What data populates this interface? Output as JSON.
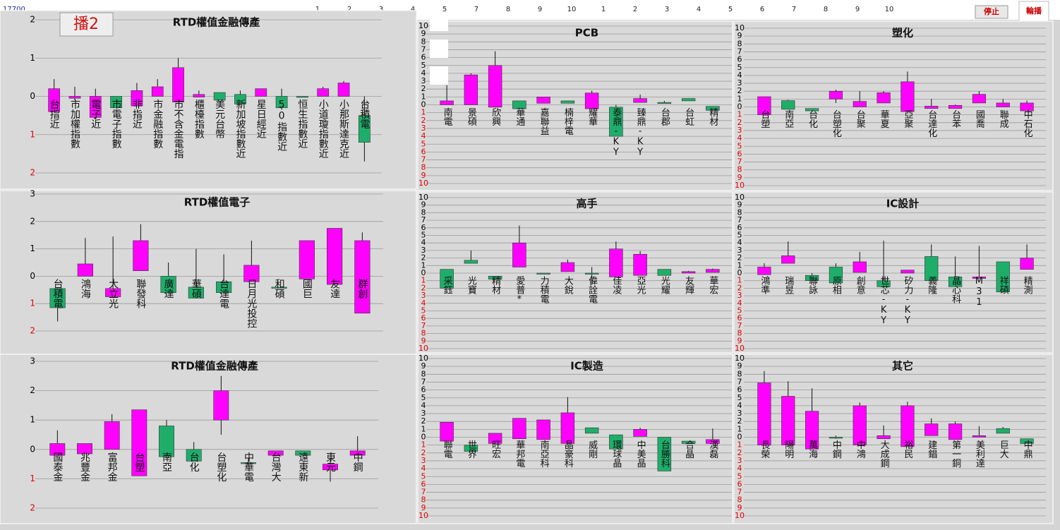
{
  "header": {
    "code": "17700",
    "numbers": [
      1,
      2,
      3,
      4,
      5,
      7,
      8,
      9,
      10,
      1,
      2,
      3,
      4,
      5,
      6,
      7,
      8,
      9,
      10
    ],
    "buttons": [
      "停止",
      "輪播"
    ],
    "panel_button": "播2"
  },
  "style": {
    "up": "#ff00ff",
    "down": "#1fae6a",
    "tick_positive": "#000000",
    "tick_negative": "#e00000",
    "grid": true
  },
  "chart_data": [
    {
      "type": "candlestick",
      "title": "RTD權值金融傳產",
      "ylim": [
        -2,
        2
      ],
      "yticks": [
        2,
        1,
        0,
        {
          "value": -1,
          "label": "1"
        },
        {
          "value": -2,
          "label": "2"
        }
      ],
      "categories": [
        "台指近",
        "市加權指數",
        "電子近",
        "市電子指數",
        "非指近",
        "市金融指數",
        "市不含金電指",
        "櫃檯指數",
        "美元台幣",
        "新加坡指數近",
        "星日經近",
        "50指數近",
        "恒生指數近",
        "小道瓊指數近",
        "小那斯達克近",
        "台積電"
      ],
      "open": [
        -0.4,
        -0.05,
        -0.55,
        0,
        -0.25,
        0,
        -0.15,
        -0.02,
        0.1,
        0.05,
        0,
        0,
        0,
        0,
        0,
        -0.5
      ],
      "close": [
        0.2,
        0,
        0,
        -0.3,
        0.15,
        0.25,
        0.75,
        0.05,
        -0.1,
        -0.2,
        0.2,
        -0.3,
        -0.01,
        0.2,
        0.35,
        -1.2
      ],
      "high": [
        0.45,
        0.25,
        0.2,
        0,
        0.35,
        0.45,
        1.0,
        0.15,
        0.1,
        0.15,
        0.2,
        0.2,
        0,
        0.25,
        0.4,
        0
      ],
      "low": [
        -0.4,
        -0.1,
        -0.6,
        -0.3,
        -0.25,
        0,
        -0.15,
        -0.02,
        -0.1,
        -0.2,
        0,
        -0.35,
        -0.01,
        0,
        0,
        -1.7
      ]
    },
    {
      "type": "candlestick",
      "title": "RTD權值電子",
      "ylim": [
        -2,
        3
      ],
      "yticks": [
        3,
        2,
        1,
        0,
        {
          "value": -1,
          "label": "1"
        },
        {
          "value": -2,
          "label": "2"
        }
      ],
      "categories": [
        "台積電",
        "鴻海",
        "大立光",
        "聯發科",
        "廣達",
        "華碩",
        "台達電",
        "日月光投控",
        "和碩",
        "國巨",
        "友達",
        "群創"
      ],
      "open": [
        -0.45,
        0,
        -0.75,
        0.2,
        0,
        -0.4,
        -0.2,
        -0.2,
        -0.4,
        -0.1,
        -0.3,
        -1.35
      ],
      "close": [
        -1.15,
        0.45,
        -0.45,
        1.3,
        -0.6,
        -0.8,
        -0.6,
        0.4,
        -0.42,
        1.3,
        1.75,
        1.3
      ],
      "high": [
        -0.4,
        1.4,
        1.45,
        1.9,
        0.5,
        1.0,
        0.8,
        1.3,
        -0.4,
        1.3,
        1.75,
        1.6
      ],
      "low": [
        -1.65,
        0,
        -0.75,
        0.2,
        -0.6,
        -0.8,
        -0.6,
        -0.2,
        -0.42,
        -0.1,
        -0.3,
        -1.35
      ]
    },
    {
      "type": "candlestick",
      "title": "RTD權值金融傳產",
      "ylim": [
        -2,
        3
      ],
      "yticks": [
        3,
        2,
        1,
        0,
        {
          "value": -1,
          "label": "1"
        },
        {
          "value": -2,
          "label": "2"
        }
      ],
      "categories": [
        "國泰金",
        "兆豐金",
        "富邦金",
        "台塑",
        "南亞",
        "台化",
        "台塑化",
        "中華電",
        "台灣大",
        "遠東新",
        "東元",
        "中鋼"
      ],
      "open": [
        -0.2,
        -0.15,
        0,
        -0.9,
        0.8,
        0,
        1.0,
        -0.45,
        -0.2,
        -0.05,
        -0.7,
        -0.2
      ],
      "close": [
        0.2,
        0.2,
        0.95,
        1.35,
        -0.25,
        -0.4,
        2.0,
        -0.46,
        -0.05,
        -0.2,
        -0.5,
        -0.05
      ],
      "high": [
        0.65,
        0.2,
        1.2,
        1.35,
        1.0,
        0.25,
        2.5,
        -0.3,
        -0.05,
        -0.05,
        -0.35,
        0.45
      ],
      "low": [
        -0.2,
        -0.15,
        0,
        -0.9,
        -0.25,
        -0.4,
        0.5,
        -0.55,
        -0.2,
        -0.2,
        -1.1,
        -0.2
      ]
    },
    {
      "type": "candlestick",
      "title": "PCB",
      "ylim": [
        -10,
        10
      ],
      "yticks": [
        10,
        9,
        8,
        7,
        6,
        5,
        4,
        3,
        2,
        1,
        0,
        {
          "value": -1,
          "label": "1"
        },
        {
          "value": -2,
          "label": "2"
        },
        {
          "value": -3,
          "label": "3"
        },
        {
          "value": -4,
          "label": "4"
        },
        {
          "value": -5,
          "label": "5"
        },
        {
          "value": -6,
          "label": "6"
        },
        {
          "value": -7,
          "label": "7"
        },
        {
          "value": -8,
          "label": "8"
        },
        {
          "value": -9,
          "label": "9"
        },
        {
          "value": -10,
          "label": "10"
        }
      ],
      "categories": [
        "南電",
        "景碩",
        "欣興",
        "華通",
        "嘉聯益",
        "楠梓電",
        "耀華",
        "泰鼎-KY",
        "臻鼎-KY",
        "台郡",
        "台虹",
        "精材"
      ],
      "open": [
        0,
        0,
        -0.3,
        0.5,
        0.2,
        0.5,
        -0.5,
        -0.3,
        0.3,
        0.3,
        0.8,
        -0.2
      ],
      "close": [
        0.5,
        3.8,
        5.0,
        -0.5,
        1.0,
        0.2,
        1.5,
        -4.0,
        0.8,
        0.25,
        0.5,
        -0.7
      ],
      "high": [
        2.5,
        4.0,
        6.8,
        0.5,
        1.0,
        0.5,
        1.8,
        0,
        1.3,
        0.5,
        0.8,
        -0.2
      ],
      "low": [
        0,
        0,
        -0.3,
        -0.5,
        0.2,
        0.2,
        -0.5,
        -4.0,
        0.3,
        0.25,
        0.5,
        -0.7
      ]
    },
    {
      "type": "candlestick",
      "title": "塑化",
      "ylim": [
        -10,
        10
      ],
      "yticks": [
        10,
        9,
        8,
        7,
        6,
        5,
        4,
        3,
        2,
        1,
        0,
        {
          "value": -1,
          "label": "1"
        },
        {
          "value": -2,
          "label": "2"
        },
        {
          "value": -3,
          "label": "3"
        },
        {
          "value": -4,
          "label": "4"
        },
        {
          "value": -5,
          "label": "5"
        },
        {
          "value": -6,
          "label": "6"
        },
        {
          "value": -7,
          "label": "7"
        },
        {
          "value": -8,
          "label": "8"
        },
        {
          "value": -9,
          "label": "9"
        },
        {
          "value": -10,
          "label": "10"
        }
      ],
      "categories": [
        "台塑",
        "南亞",
        "台化",
        "台塑化",
        "台聚",
        "華夏",
        "亞聚",
        "台達化",
        "台苯",
        "國喬",
        "聯成",
        "中石化"
      ],
      "open": [
        -1.0,
        0.8,
        -0.2,
        1.0,
        0,
        0.5,
        -0.6,
        -0.2,
        -0.2,
        0.5,
        0,
        -0.5
      ],
      "close": [
        1.3,
        -0.3,
        -0.5,
        2.0,
        0.7,
        1.8,
        3.2,
        0.1,
        0.2,
        1.6,
        0.5,
        0.5
      ],
      "high": [
        1.3,
        0.9,
        -0.2,
        2.2,
        2.0,
        2.0,
        4.5,
        1.0,
        0.3,
        2.0,
        1.0,
        0.8
      ],
      "low": [
        -1.0,
        -0.3,
        -0.5,
        0.5,
        0,
        0.5,
        -0.6,
        -0.2,
        -0.2,
        0.5,
        0,
        -0.5
      ]
    },
    {
      "type": "candlestick",
      "title": "高手",
      "ylim": [
        -10,
        10
      ],
      "yticks": [
        10,
        9,
        8,
        7,
        6,
        5,
        4,
        3,
        2,
        1,
        0,
        {
          "value": -1,
          "label": "1"
        },
        {
          "value": -2,
          "label": "2"
        },
        {
          "value": -3,
          "label": "3"
        },
        {
          "value": -4,
          "label": "4"
        },
        {
          "value": -5,
          "label": "5"
        },
        {
          "value": -6,
          "label": "6"
        },
        {
          "value": -7,
          "label": "7"
        },
        {
          "value": -8,
          "label": "8"
        },
        {
          "value": -9,
          "label": "9"
        },
        {
          "value": -10,
          "label": "10"
        }
      ],
      "categories": [
        "采鈺",
        "光寶",
        "精材",
        "愛普*",
        "力積電",
        "大銳",
        "偉詮電",
        "佳凌",
        "亞光",
        "光耀",
        "友輝",
        "華宏"
      ],
      "open": [
        0.5,
        1.7,
        -0.4,
        0.8,
        0,
        0.2,
        0,
        -0.5,
        -0.3,
        0.5,
        0,
        0.1
      ],
      "close": [
        -2.0,
        1.3,
        -0.8,
        4.0,
        -0.05,
        1.4,
        -0.05,
        3.2,
        2.5,
        -0.3,
        0.2,
        0.5
      ],
      "high": [
        0.5,
        3.0,
        -0.4,
        6.3,
        0,
        1.8,
        0.8,
        4.2,
        2.9,
        0.5,
        0.3,
        0.6
      ],
      "low": [
        -2.0,
        1.3,
        -0.8,
        0.8,
        -0.05,
        0.2,
        -1.6,
        -0.5,
        -0.3,
        -0.3,
        0,
        0.1
      ]
    },
    {
      "type": "candlestick",
      "title": "IC設計",
      "ylim": [
        -10,
        10
      ],
      "yticks": [
        10,
        9,
        8,
        7,
        6,
        5,
        4,
        3,
        2,
        1,
        0,
        {
          "value": -1,
          "label": "1"
        },
        {
          "value": -2,
          "label": "2"
        },
        {
          "value": -3,
          "label": "3"
        },
        {
          "value": -4,
          "label": "4"
        },
        {
          "value": -5,
          "label": "5"
        },
        {
          "value": -6,
          "label": "6"
        },
        {
          "value": -7,
          "label": "7"
        },
        {
          "value": -8,
          "label": "8"
        },
        {
          "value": -9,
          "label": "9"
        },
        {
          "value": -10,
          "label": "10"
        }
      ],
      "categories": [
        "鴻準",
        "瑞昱",
        "聯詠",
        "原相",
        "創意",
        "世芯-KY",
        "矽力-KY",
        "義隆",
        "晶心科",
        "M31",
        "祥碩",
        "精測"
      ],
      "open": [
        -0.2,
        1.3,
        -0.3,
        0.8,
        0.1,
        -1.0,
        0,
        2.2,
        -0.5,
        -0.7,
        1.5,
        0.5
      ],
      "close": [
        0.8,
        2.3,
        -1.0,
        -1.3,
        1.5,
        -1.8,
        0.4,
        -1.0,
        -1.8,
        -0.5,
        -2.5,
        2.0
      ],
      "high": [
        1.3,
        4.2,
        0,
        1.3,
        2.8,
        4.3,
        0.4,
        3.8,
        2.2,
        3.6,
        1.5,
        3.8
      ],
      "low": [
        -0.2,
        1.3,
        -1.0,
        -1.3,
        0.1,
        -1.8,
        0,
        -1.0,
        -1.8,
        -0.7,
        -2.5,
        0.5
      ]
    },
    {
      "type": "candlestick",
      "title": "IC製造",
      "ylim": [
        -10,
        10
      ],
      "yticks": [
        10,
        9,
        8,
        7,
        6,
        5,
        4,
        3,
        2,
        1,
        0,
        {
          "value": -1,
          "label": "1"
        },
        {
          "value": -2,
          "label": "2"
        },
        {
          "value": -3,
          "label": "3"
        },
        {
          "value": -4,
          "label": "4"
        },
        {
          "value": -5,
          "label": "5"
        },
        {
          "value": -6,
          "label": "6"
        },
        {
          "value": -7,
          "label": "7"
        },
        {
          "value": -8,
          "label": "8"
        },
        {
          "value": -9,
          "label": "9"
        },
        {
          "value": -10,
          "label": "10"
        }
      ],
      "categories": [
        "聯電",
        "世界",
        "旺宏",
        "華邦電",
        "南亞科",
        "晶豪科",
        "威剛",
        "環球晶",
        "中美晶",
        "台勝科",
        "合晶",
        "漢磊"
      ],
      "open": [
        -0.5,
        -1.0,
        -0.8,
        -0.2,
        -0.3,
        -0.8,
        1.2,
        0.3,
        0.1,
        0,
        -0.5,
        -0.8
      ],
      "close": [
        1.9,
        -1.8,
        0.5,
        2.4,
        2.2,
        3.1,
        0.5,
        -1.5,
        1.0,
        -4.3,
        -0.8,
        -0.3
      ],
      "high": [
        1.9,
        -1.0,
        0.5,
        2.4,
        2.2,
        5.1,
        1.2,
        0.3,
        1.2,
        0,
        -0.5,
        1.1
      ],
      "low": [
        -0.5,
        -1.8,
        -0.8,
        -0.2,
        -0.3,
        -0.8,
        0.5,
        -1.5,
        0.1,
        -4.3,
        -0.8,
        -0.8
      ]
    },
    {
      "type": "candlestick",
      "title": "其它",
      "ylim": [
        -10,
        10
      ],
      "yticks": [
        10,
        9,
        8,
        7,
        6,
        5,
        4,
        3,
        2,
        1,
        0,
        {
          "value": -1,
          "label": "1"
        },
        {
          "value": -2,
          "label": "2"
        },
        {
          "value": -3,
          "label": "3"
        },
        {
          "value": -4,
          "label": "4"
        },
        {
          "value": -5,
          "label": "5"
        },
        {
          "value": -6,
          "label": "6"
        },
        {
          "value": -7,
          "label": "7"
        },
        {
          "value": -8,
          "label": "8"
        },
        {
          "value": -9,
          "label": "9"
        },
        {
          "value": -10,
          "label": "10"
        }
      ],
      "categories": [
        "長榮",
        "陽明",
        "萬海",
        "中鋼",
        "中鴻",
        "大成鋼",
        "裕民",
        "建錩",
        "第一銅",
        "美利達",
        "巨大",
        "中鼎"
      ],
      "open": [
        -1.0,
        -1.0,
        -1.5,
        0,
        -1.0,
        -0.2,
        -1.2,
        0.2,
        -0.3,
        0,
        1.1,
        -0.2
      ],
      "close": [
        6.9,
        5.2,
        3.3,
        -0.05,
        4.0,
        0.2,
        4.0,
        1.7,
        1.7,
        0.2,
        0.5,
        -0.8
      ],
      "high": [
        8.4,
        7.1,
        6.2,
        0.2,
        4.4,
        1.5,
        4.5,
        2.4,
        2.0,
        1.4,
        1.3,
        -0.2
      ],
      "low": [
        -1.0,
        -1.0,
        -1.5,
        -0.2,
        -1.0,
        -0.2,
        -1.2,
        0.2,
        -0.3,
        0,
        0.5,
        -0.8
      ]
    }
  ]
}
